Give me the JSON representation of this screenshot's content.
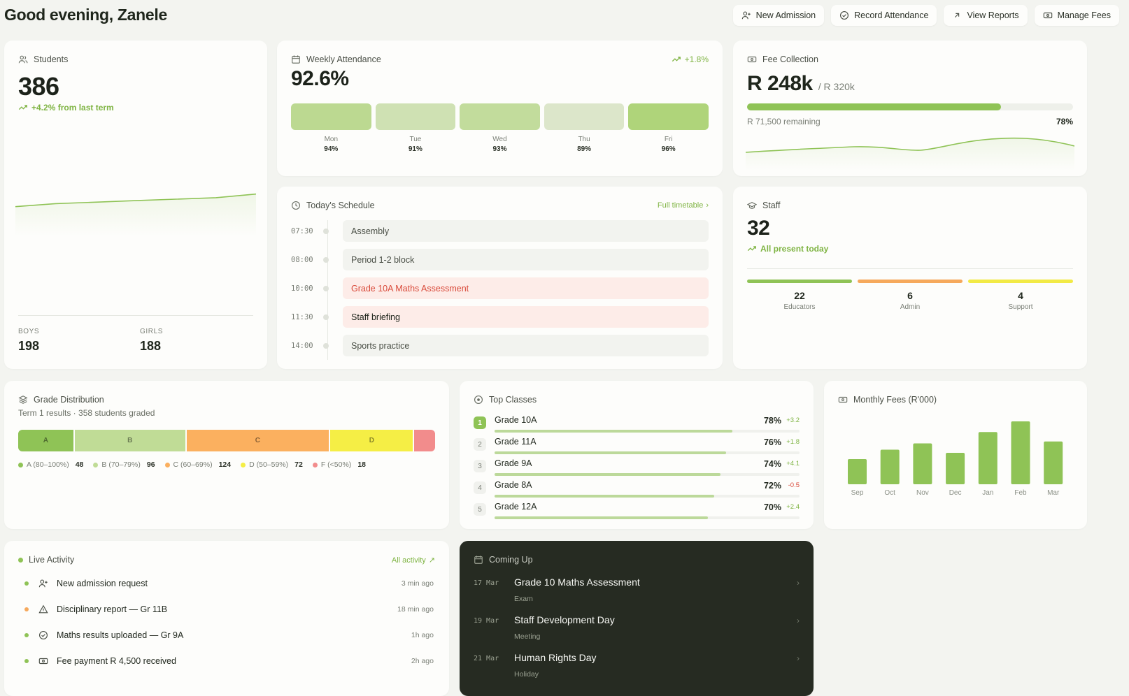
{
  "header": {
    "greeting": "Good evening, Zanele",
    "actions": [
      {
        "label": "New Admission",
        "icon": "user-plus-icon"
      },
      {
        "label": "Record Attendance",
        "icon": "check-circle-icon"
      },
      {
        "label": "View Reports",
        "icon": "arrow-up-right-icon"
      },
      {
        "label": "Manage Fees",
        "icon": "banknote-icon"
      }
    ]
  },
  "students": {
    "title": "Students",
    "total": "386",
    "trend": "+4.2% from last term",
    "trend_values": [
      100,
      101,
      101.5,
      102,
      102.5,
      103,
      104.2
    ],
    "boys_label": "BOYS",
    "boys": "198",
    "girls_label": "GIRLS",
    "girls": "188"
  },
  "attendance": {
    "title": "Weekly Attendance",
    "change": "+1.8%",
    "value": "92.6%",
    "days": [
      {
        "day": "Mon",
        "pct": "94%",
        "value": 94
      },
      {
        "day": "Tue",
        "pct": "91%",
        "value": 91
      },
      {
        "day": "Wed",
        "pct": "93%",
        "value": 93
      },
      {
        "day": "Thu",
        "pct": "89%",
        "value": 89
      },
      {
        "day": "Fri",
        "pct": "96%",
        "value": 96
      }
    ]
  },
  "fees": {
    "title": "Fee Collection",
    "amount": "R 248k",
    "target": "/ R 320k",
    "remaining": "R 71,500 remaining",
    "percent_label": "78%",
    "percent": 78
  },
  "schedule": {
    "title": "Today's Schedule",
    "link": "Full timetable",
    "items": [
      {
        "time": "07:30",
        "name": "Assembly"
      },
      {
        "time": "08:00",
        "name": "Period 1-2 block"
      },
      {
        "time": "10:00",
        "name": "Grade 10A Maths Assessment"
      },
      {
        "time": "11:30",
        "name": "Staff briefing"
      },
      {
        "time": "14:00",
        "name": "Sports practice"
      }
    ]
  },
  "staff": {
    "title": "Staff",
    "total": "32",
    "status": "All present today",
    "groups": [
      {
        "count": "22",
        "label": "Educators",
        "color": "#8fc356"
      },
      {
        "count": "6",
        "label": "Admin",
        "color": "#f6a95c"
      },
      {
        "count": "4",
        "label": "Support",
        "color": "#f2ea45"
      }
    ]
  },
  "grades": {
    "title": "Grade Distribution",
    "subtitle": "Term 1 results · 358 students graded",
    "segments": [
      {
        "grade": "A",
        "range": "A (80–100%)",
        "count": "48",
        "value": 48,
        "color": "#8fc356"
      },
      {
        "grade": "B",
        "range": "B (70–79%)",
        "count": "96",
        "value": 96,
        "color": "#c0dc96"
      },
      {
        "grade": "C",
        "range": "C (60–69%)",
        "count": "124",
        "value": 124,
        "color": "#fbb05f"
      },
      {
        "grade": "D",
        "range": "D (50–59%)",
        "count": "72",
        "value": 72,
        "color": "#f5ee45"
      },
      {
        "grade": "",
        "range": "F (<50%)",
        "count": "18",
        "value": 18,
        "color": "#f28c8c"
      }
    ]
  },
  "top_classes": {
    "title": "Top Classes",
    "items": [
      {
        "rank": "1",
        "name": "Grade 10A",
        "pct": "78%",
        "value": 78,
        "delta": "+3.2",
        "up": true
      },
      {
        "rank": "2",
        "name": "Grade 11A",
        "pct": "76%",
        "value": 76,
        "delta": "+1.8",
        "up": true
      },
      {
        "rank": "3",
        "name": "Grade 9A",
        "pct": "74%",
        "value": 74,
        "delta": "+4.1",
        "up": true
      },
      {
        "rank": "4",
        "name": "Grade 8A",
        "pct": "72%",
        "value": 72,
        "delta": "-0.5",
        "up": false
      },
      {
        "rank": "5",
        "name": "Grade 12A",
        "pct": "70%",
        "value": 70,
        "delta": "+2.4",
        "up": true
      }
    ]
  },
  "monthly_fees": {
    "title": "Monthly Fees (R'000)",
    "chart_data": {
      "type": "bar",
      "title": "Monthly Fees (R'000)",
      "categories": [
        "Sep",
        "Oct",
        "Nov",
        "Dec",
        "Jan",
        "Feb",
        "Mar"
      ],
      "values": [
        40,
        55,
        65,
        50,
        83,
        100,
        68
      ],
      "color": "#8fc356"
    }
  },
  "activity": {
    "title": "Live Activity",
    "link": "All activity",
    "items": [
      {
        "text": "New admission request",
        "time": "3 min ago",
        "dot": "#8fc356",
        "icon": "user-plus-icon"
      },
      {
        "text": "Disciplinary report — Gr 11B",
        "time": "18 min ago",
        "dot": "#f6a95c",
        "icon": "warning-icon"
      },
      {
        "text": "Maths results uploaded — Gr 9A",
        "time": "1h ago",
        "dot": "#8fc356",
        "icon": "check-circle-icon"
      },
      {
        "text": "Fee payment R 4,500 received",
        "time": "2h ago",
        "dot": "#8fc356",
        "icon": "banknote-icon"
      }
    ]
  },
  "coming_up": {
    "title": "Coming Up",
    "items": [
      {
        "date": "17 Mar",
        "name": "Grade 10 Maths Assessment",
        "type": "Exam"
      },
      {
        "date": "19 Mar",
        "name": "Staff Development Day",
        "type": "Meeting"
      },
      {
        "date": "21 Mar",
        "name": "Human Rights Day",
        "type": "Holiday"
      }
    ]
  }
}
